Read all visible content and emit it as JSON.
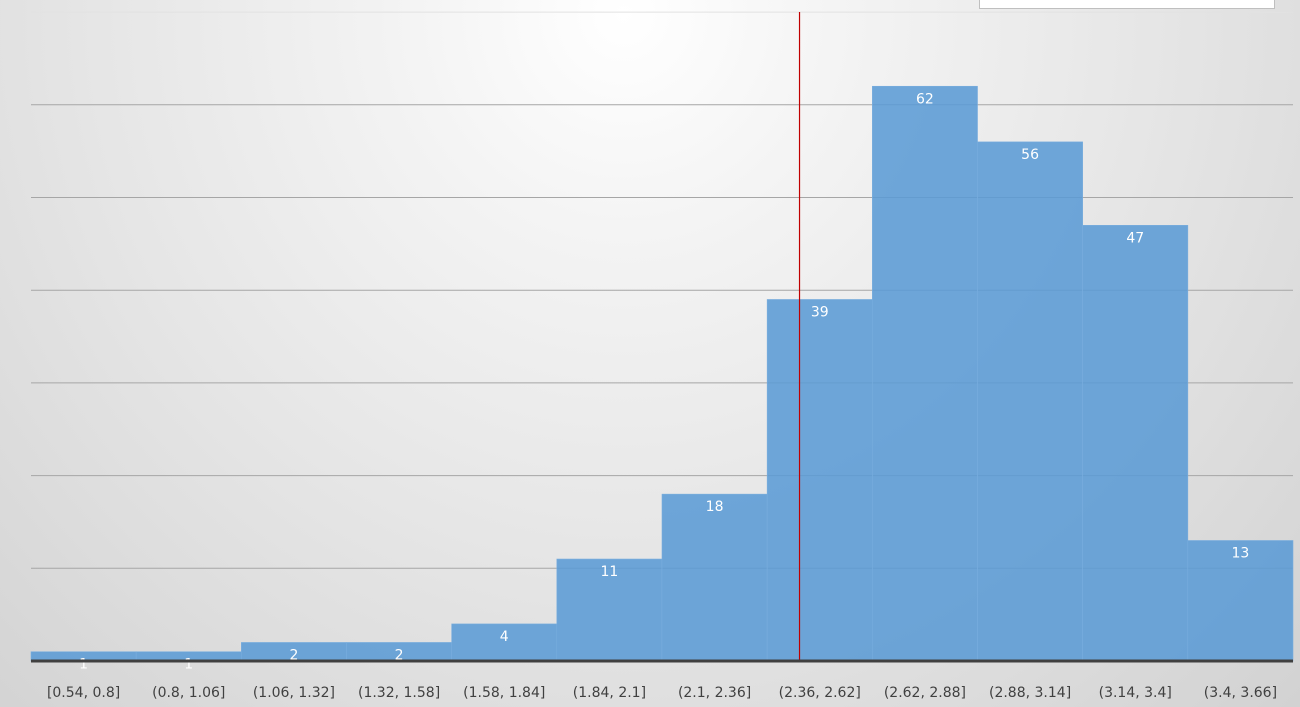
{
  "chart_data": {
    "type": "bar",
    "categories": [
      "[0.54, 0.8]",
      "(0.8, 1.06]",
      "(1.06, 1.32]",
      "(1.32, 1.58]",
      "(1.58, 1.84]",
      "(1.84, 2.1]",
      "(2.1, 2.36]",
      "(2.36, 2.62]",
      "(2.62, 2.88]",
      "(2.88, 3.14]",
      "(3.14, 3.4]",
      "(3.4, 3.66]"
    ],
    "values": [
      1,
      1,
      2,
      2,
      4,
      11,
      18,
      39,
      62,
      56,
      47,
      13
    ],
    "ylim": [
      0,
      70
    ],
    "grid": true,
    "reference_line": {
      "x": 2.44,
      "color": "#c00000"
    },
    "bar_color": "#5b9bd5",
    "axis_color": "#404040"
  }
}
